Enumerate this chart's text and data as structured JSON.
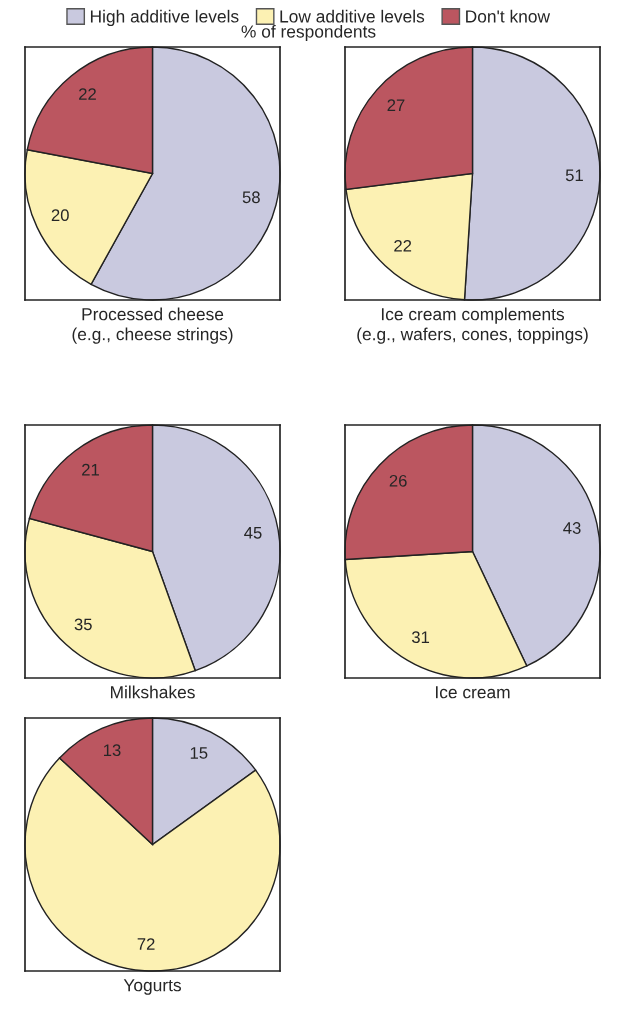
{
  "chart_data": [
    {
      "type": "pie",
      "title": "Processed cheese\n(e.g., cheese strings)",
      "subtitle": "% of respondents",
      "legend": "top",
      "categories": [
        "High additive levels",
        "Low additive levels",
        "Don't know"
      ],
      "values": [
        58,
        20,
        22
      ],
      "colors": [
        "#c9c9df",
        "#fcf1b3",
        "#bb5660"
      ],
      "data_labels": true
    },
    {
      "type": "pie",
      "title": "Ice cream complements\n(e.g., wafers, cones, toppings)",
      "categories": [
        null,
        null,
        null
      ],
      "values": [
        51,
        22,
        27
      ],
      "colors": [
        "#c9c9df",
        "#fcf1b3",
        "#bb5660"
      ],
      "data_labels": true
    },
    {
      "type": "pie",
      "title": "Milkshakes",
      "categories": [
        null,
        null,
        null
      ],
      "values": [
        45,
        35,
        21
      ],
      "colors": [
        "#c9c9df",
        "#fcf1b3",
        "#bb5660"
      ],
      "data_labels": true
    },
    {
      "type": "pie",
      "title": "Ice cream",
      "categories": [
        null,
        null,
        null
      ],
      "values": [
        43,
        31,
        26
      ],
      "colors": [
        "#c9c9df",
        "#fcf1b3",
        "#bb5660"
      ],
      "data_labels": true
    },
    {
      "type": "pie",
      "title": "Yogurts",
      "categories": [
        null,
        null,
        null
      ],
      "values": [
        15,
        72,
        13
      ],
      "colors": [
        "#c9c9df",
        "#fcf1b3",
        "#bb5660"
      ],
      "data_labels": true
    }
  ]
}
